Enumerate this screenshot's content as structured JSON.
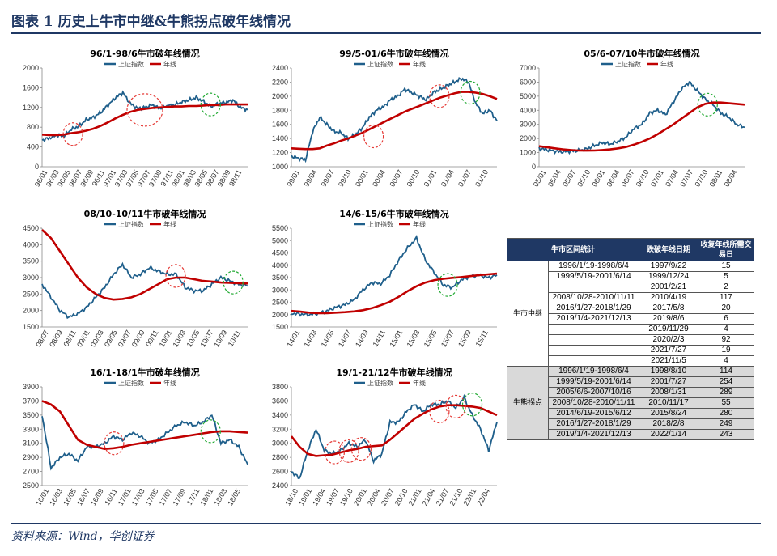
{
  "header": {
    "title": "图表 1   历史上牛市中继&牛熊拐点破年线情况"
  },
  "source": "资料来源：Wind，华创证券",
  "colors": {
    "index": "#1f5f8b",
    "ma": "#c00000",
    "circle_red": "#e53935",
    "circle_green": "#22aa33",
    "navy": "#1f3864"
  },
  "legend": {
    "index": "上证指数",
    "ma": "年线"
  },
  "chart_data": [
    {
      "type": "line",
      "title": "96/1-98/6牛市破年线情况",
      "ylim": [
        0,
        2000
      ],
      "yticks": [
        0,
        400,
        800,
        1200,
        1600,
        2000
      ],
      "xticks": [
        "96/01",
        "96/03",
        "96/05",
        "96/07",
        "96/09",
        "96/11",
        "97/01",
        "97/03",
        "97/05",
        "97/07",
        "97/09",
        "97/11",
        "98/01",
        "98/03",
        "98/05",
        "98/07",
        "98/09",
        "98/11"
      ],
      "series": [
        {
          "name": "上证指数",
          "values": [
            540,
            580,
            640,
            620,
            760,
            820,
            950,
            1000,
            1100,
            1250,
            1400,
            1500,
            1280,
            1180,
            1200,
            1250,
            1180,
            1230,
            1250,
            1310,
            1350,
            1400,
            1320,
            1220,
            1280,
            1300,
            1350,
            1200,
            1150
          ]
        },
        {
          "name": "年线",
          "values": [
            650,
            640,
            640,
            650,
            680,
            700,
            730,
            770,
            830,
            900,
            980,
            1050,
            1110,
            1150,
            1170,
            1190,
            1200,
            1210,
            1220,
            1220,
            1230,
            1230,
            1240,
            1250,
            1250,
            1260,
            1260,
            1260,
            1260
          ]
        }
      ],
      "circles": [
        {
          "x": 0.15,
          "y": 660,
          "c": "red"
        },
        {
          "x": 0.5,
          "y": 1150,
          "c": "red"
        },
        {
          "x": 0.82,
          "y": 1260,
          "c": "green"
        }
      ]
    },
    {
      "type": "line",
      "title": "99/5-01/6牛市破年线情况",
      "ylim": [
        1000,
        2400
      ],
      "yticks": [
        1000,
        1200,
        1400,
        1600,
        1800,
        2000,
        2200,
        2400
      ],
      "xticks": [
        "99/01",
        "99/04",
        "99/07",
        "99/10",
        "00/01",
        "00/04",
        "00/07",
        "00/10",
        "01/01",
        "01/04",
        "01/07",
        "01/10"
      ],
      "series": [
        {
          "name": "上证指数",
          "values": [
            1150,
            1120,
            1100,
            1500,
            1700,
            1600,
            1500,
            1480,
            1400,
            1450,
            1550,
            1700,
            1800,
            1850,
            1950,
            2000,
            2100,
            2050,
            2000,
            1950,
            2050,
            2100,
            2150,
            2200,
            2250,
            2200,
            1900,
            1750,
            1800,
            1650
          ]
        },
        {
          "name": "年线",
          "values": [
            1260,
            1255,
            1250,
            1250,
            1260,
            1300,
            1330,
            1370,
            1400,
            1440,
            1480,
            1530,
            1580,
            1630,
            1680,
            1730,
            1780,
            1820,
            1860,
            1900,
            1940,
            1980,
            2010,
            2040,
            2060,
            2060,
            2050,
            2030,
            2000,
            1960
          ]
        }
      ],
      "circles": [
        {
          "x": 0.4,
          "y": 1430,
          "c": "red"
        },
        {
          "x": 0.72,
          "y": 2000,
          "c": "red"
        },
        {
          "x": 0.87,
          "y": 2050,
          "c": "green"
        }
      ]
    },
    {
      "type": "line",
      "title": "05/6-07/10牛市破年线情况",
      "ylim": [
        0,
        7000
      ],
      "yticks": [
        0,
        1000,
        2000,
        3000,
        4000,
        5000,
        6000,
        7000
      ],
      "xticks": [
        "05/01",
        "05/04",
        "05/07",
        "05/10",
        "06/01",
        "06/04",
        "06/07",
        "06/10",
        "07/01",
        "07/04",
        "07/07",
        "07/10",
        "08/01",
        "08/04"
      ],
      "series": [
        {
          "name": "上证指数",
          "values": [
            1300,
            1200,
            1100,
            1050,
            1100,
            1150,
            1250,
            1500,
            1700,
            1600,
            1800,
            2100,
            2700,
            3000,
            3800,
            4000,
            3700,
            4600,
            5500,
            6000,
            5400,
            4800,
            4400,
            3800,
            3500,
            3000,
            2800
          ]
        },
        {
          "name": "年线",
          "values": [
            1450,
            1380,
            1300,
            1230,
            1180,
            1150,
            1140,
            1150,
            1180,
            1230,
            1300,
            1400,
            1560,
            1760,
            2000,
            2300,
            2650,
            3000,
            3400,
            3800,
            4200,
            4450,
            4550,
            4550,
            4500,
            4450,
            4400
          ]
        }
      ],
      "circles": [
        {
          "x": 0.82,
          "y": 4400,
          "c": "green"
        }
      ]
    },
    {
      "type": "line",
      "title": "08/10-10/11牛市破年线情况",
      "ylim": [
        1500,
        4500
      ],
      "yticks": [
        1500,
        2000,
        2500,
        3000,
        3500,
        4000,
        4500
      ],
      "xticks": [
        "08/07",
        "08/09",
        "08/11",
        "09/01",
        "09/03",
        "09/05",
        "09/07",
        "09/09",
        "09/11",
        "10/01",
        "10/03",
        "10/05",
        "10/07",
        "10/09",
        "10/11"
      ],
      "series": [
        {
          "name": "上证指数",
          "values": [
            2800,
            2400,
            2000,
            1800,
            1900,
            2100,
            2400,
            2700,
            3100,
            3400,
            3000,
            3100,
            3300,
            3200,
            3100,
            3100,
            2700,
            2600,
            2600,
            2800,
            3000,
            2900,
            2800,
            2750
          ]
        },
        {
          "name": "年线",
          "values": [
            4450,
            4200,
            3800,
            3400,
            3000,
            2700,
            2500,
            2380,
            2330,
            2350,
            2400,
            2500,
            2650,
            2800,
            2950,
            3000,
            3000,
            2950,
            2900,
            2880,
            2850,
            2840,
            2830,
            2820
          ]
        }
      ],
      "circles": [
        {
          "x": 0.65,
          "y": 3050,
          "c": "red"
        },
        {
          "x": 0.93,
          "y": 2850,
          "c": "green"
        }
      ]
    },
    {
      "type": "line",
      "title": "14/6-15/6牛市破年线情况",
      "ylim": [
        1500,
        5500
      ],
      "yticks": [
        1500,
        2000,
        2500,
        3000,
        3500,
        4000,
        4500,
        5000,
        5500
      ],
      "xticks": [
        "14/01",
        "14/03",
        "14/05",
        "14/07",
        "14/09",
        "14/11",
        "15/01",
        "15/03",
        "15/05",
        "15/07",
        "15/09",
        "15/11"
      ],
      "series": [
        {
          "name": "上证指数",
          "values": [
            2050,
            2020,
            2000,
            2050,
            2150,
            2300,
            2400,
            2600,
            3000,
            3300,
            3250,
            3600,
            4200,
            4700,
            5100,
            4200,
            3700,
            3200,
            3100,
            3400,
            3550,
            3600,
            3500,
            3600
          ]
        },
        {
          "name": "年线",
          "values": [
            2150,
            2120,
            2080,
            2060,
            2060,
            2080,
            2100,
            2130,
            2180,
            2260,
            2380,
            2520,
            2720,
            2950,
            3150,
            3300,
            3400,
            3450,
            3490,
            3520,
            3560,
            3600,
            3630,
            3660
          ]
        }
      ],
      "circles": [
        {
          "x": 0.76,
          "y": 3200,
          "c": "green"
        }
      ]
    },
    {
      "type": "line",
      "title": "16/1-18/1牛市破年线情况",
      "ylim": [
        2500,
        3900
      ],
      "yticks": [
        2500,
        2700,
        2900,
        3100,
        3300,
        3500,
        3700,
        3900
      ],
      "xticks": [
        "16/01",
        "16/03",
        "16/05",
        "16/07",
        "16/09",
        "16/11",
        "17/01",
        "17/03",
        "17/05",
        "17/07",
        "17/09",
        "17/11",
        "18/01",
        "18/03",
        "18/05"
      ],
      "series": [
        {
          "name": "上证指数",
          "values": [
            3500,
            2750,
            2900,
            2950,
            2850,
            3050,
            3050,
            3100,
            3200,
            3150,
            3250,
            3200,
            3100,
            3150,
            3250,
            3350,
            3400,
            3350,
            3400,
            3500,
            3100,
            3150,
            3050,
            2800
          ]
        },
        {
          "name": "年线",
          "values": [
            3700,
            3650,
            3550,
            3350,
            3150,
            3080,
            3050,
            3020,
            3030,
            3050,
            3080,
            3100,
            3120,
            3140,
            3160,
            3180,
            3200,
            3220,
            3240,
            3260,
            3270,
            3270,
            3260,
            3250
          ]
        }
      ],
      "circles": [
        {
          "x": 0.35,
          "y": 3100,
          "c": "red"
        },
        {
          "x": 0.82,
          "y": 3270,
          "c": "green"
        }
      ]
    },
    {
      "type": "line",
      "title": "19/1-21/12牛市破年线情况",
      "ylim": [
        2400,
        3800
      ],
      "yticks": [
        2400,
        2600,
        2800,
        3000,
        3200,
        3400,
        3600,
        3800
      ],
      "xticks": [
        "18/10",
        "19/01",
        "19/04",
        "19/07",
        "19/10",
        "20/01",
        "20/04",
        "20/07",
        "20/10",
        "21/01",
        "21/04",
        "21/07",
        "21/10",
        "22/01",
        "22/04"
      ],
      "series": [
        {
          "name": "上证指数",
          "values": [
            2600,
            2500,
            2900,
            3200,
            2900,
            2850,
            2900,
            3000,
            2950,
            3050,
            2750,
            2850,
            3300,
            3300,
            3450,
            3550,
            3450,
            3550,
            3550,
            3600,
            3500,
            3650,
            3400,
            3200,
            2900,
            3300
          ]
        },
        {
          "name": "年线",
          "values": [
            3100,
            2950,
            2850,
            2820,
            2830,
            2840,
            2870,
            2900,
            2920,
            2950,
            2960,
            2970,
            3050,
            3150,
            3250,
            3350,
            3420,
            3480,
            3520,
            3540,
            3540,
            3530,
            3520,
            3500,
            3450,
            3400
          ]
        }
      ],
      "circles": [
        {
          "x": 0.21,
          "y": 2870,
          "c": "red"
        },
        {
          "x": 0.28,
          "y": 2890,
          "c": "red"
        },
        {
          "x": 0.34,
          "y": 2920,
          "c": "red"
        },
        {
          "x": 0.72,
          "y": 3450,
          "c": "red"
        },
        {
          "x": 0.8,
          "y": 3520,
          "c": "red"
        },
        {
          "x": 0.88,
          "y": 3550,
          "c": "green"
        }
      ]
    }
  ],
  "table": {
    "headers": [
      "牛市区间统计",
      "跌破年线日期",
      "收复年线所需交易日"
    ],
    "group1": "牛市中继",
    "group2": "牛熊拐点",
    "rows1": [
      [
        "1996/1/19-1998/6/4",
        "1997/9/22",
        "15"
      ],
      [
        "1999/5/19-2001/6/14",
        "1999/12/24",
        "5"
      ],
      [
        "",
        "2001/2/21",
        "2"
      ],
      [
        "2008/10/28-2010/11/11",
        "2010/4/19",
        "117"
      ],
      [
        "2016/1/27-2018/1/29",
        "2017/5/8",
        "20"
      ],
      [
        "2019/1/4-2021/12/13",
        "2019/8/6",
        "6"
      ],
      [
        "",
        "2019/11/29",
        "4"
      ],
      [
        "",
        "2020/2/3",
        "92"
      ],
      [
        "",
        "2021/7/27",
        "19"
      ],
      [
        "",
        "2021/11/5",
        "4"
      ]
    ],
    "rows2": [
      [
        "1996/1/19-1998/6/4",
        "1998/8/10",
        "114"
      ],
      [
        "1999/5/19-2001/6/14",
        "2001/7/27",
        "254"
      ],
      [
        "2005/6/6-2007/10/16",
        "2008/1/31",
        "289"
      ],
      [
        "2008/10/28-2010/11/11",
        "2010/11/17",
        "55"
      ],
      [
        "2014/6/19-2015/6/12",
        "2015/8/24",
        "280"
      ],
      [
        "2016/1/27-2018/1/29",
        "2018/2/8",
        "249"
      ],
      [
        "2019/1/4-2021/12/13",
        "2022/1/14",
        "243"
      ]
    ]
  }
}
